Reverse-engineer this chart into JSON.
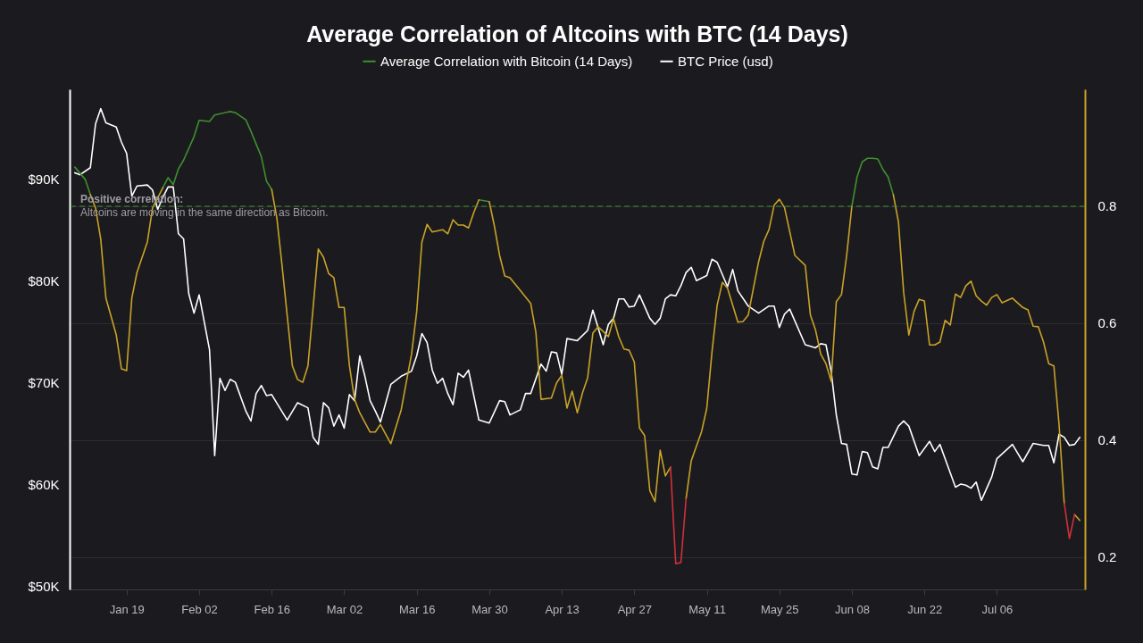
{
  "chart_data": {
    "type": "line",
    "title": "Average Correlation of Altcoins with BTC (14 Days)",
    "legend": "top",
    "grid": "y",
    "line_style": "solid",
    "xlim": [
      "--01-08",
      "--07-23"
    ],
    "xticks": [
      {
        "value": "--01-19",
        "label": "Jan 19"
      },
      {
        "value": "--02-02",
        "label": "Feb 02"
      },
      {
        "value": "--02-16",
        "label": "Feb 16"
      },
      {
        "value": "--03-02",
        "label": "Mar 02"
      },
      {
        "value": "--03-16",
        "label": "Mar 16"
      },
      {
        "value": "--03-30",
        "label": "Mar 30"
      },
      {
        "value": "--04-13",
        "label": "Apr 13"
      },
      {
        "value": "--04-27",
        "label": "Apr 27"
      },
      {
        "value": "--05-11",
        "label": "May 11"
      },
      {
        "value": "--05-25",
        "label": "May 25"
      },
      {
        "value": "--06-08",
        "label": "Jun 08"
      },
      {
        "value": "--06-22",
        "label": "Jun 22"
      },
      {
        "value": "--07-06",
        "label": "Jul 06"
      }
    ],
    "ylim": [
      49650,
      98800
    ],
    "yticks": [
      {
        "value": 50000,
        "label": "$50K"
      },
      {
        "value": 60000,
        "label": "$60K"
      },
      {
        "value": 70000,
        "label": "$70K"
      },
      {
        "value": 80000,
        "label": "$80K"
      },
      {
        "value": 90000,
        "label": "$90K"
      }
    ],
    "y2lim": [
      0.145,
      1.0
    ],
    "y2ticks": [
      0.2,
      0.4,
      0.6,
      0.8
    ],
    "ref_lines": [
      {
        "axis": "y2",
        "value": 0.8,
        "label": "Positive correlation:",
        "color": "#3f8f2f",
        "line_style": "dashed"
      }
    ],
    "annotations": [
      "Altcoins are moving in the same direction as Bitcoin."
    ],
    "series": [
      {
        "name": "Average Correlation with Bitcoin (14 Days)",
        "color": "#3f8f2f",
        "axis": "y2",
        "x": [
          "--01-09",
          "--01-11",
          "--01-12",
          "--01-13",
          "--01-26",
          "--01-27",
          "--01-28",
          "--01-29",
          "--01-30",
          "--02-01",
          "--02-02",
          "--02-04",
          "--02-05",
          "--02-08",
          "--02-09",
          "--02-11",
          "--02-12",
          "--02-14",
          "--02-15",
          "--02-16",
          "--02-17",
          "--03-28",
          "--03-30",
          "--03-31",
          "--06-08",
          "--06-09",
          "--06-10",
          "--06-11",
          "--06-12",
          "--06-13",
          "--06-14",
          "--06-15",
          "--06-16"
        ],
        "values": [
          0.867,
          0.846,
          0.82,
          null,
          0.832,
          0.849,
          0.837,
          0.864,
          0.879,
          0.919,
          0.947,
          0.945,
          0.956,
          0.962,
          0.96,
          0.948,
          0.928,
          0.885,
          0.843,
          0.829,
          null,
          0.811,
          0.808,
          null,
          0.8,
          0.85,
          0.876,
          0.882,
          0.882,
          0.881,
          0.863,
          0.85,
          0.82
        ]
      },
      {
        "color": "#c9a227",
        "axis": "y2",
        "x": [
          "--01-12",
          "--01-13",
          "--01-14",
          "--01-15",
          "--01-17",
          "--01-18",
          "--01-19",
          "--01-20",
          "--01-21",
          "--01-23",
          "--01-24",
          "--01-26",
          "--01-27",
          "--02-16",
          "--02-17",
          "--02-18",
          "--02-20",
          "--02-21",
          "--02-22",
          "--02-23",
          "--02-25",
          "--02-26",
          "--02-27",
          "--02-28",
          "--03-01",
          "--03-02",
          "--03-03",
          "--03-04",
          "--03-05",
          "--03-07",
          "--03-08",
          "--03-09",
          "--03-11",
          "--03-13",
          "--03-15",
          "--03-16",
          "--03-17",
          "--03-18",
          "--03-19",
          "--03-21",
          "--03-22",
          "--03-23",
          "--03-24",
          "--03-25",
          "--03-26",
          "--03-27",
          "--03-28",
          "--03-29",
          "--03-30",
          "--03-31",
          "--04-01",
          "--04-02",
          "--04-03",
          "--04-05",
          "--04-07",
          "--04-08",
          "--04-09",
          "--04-11",
          "--04-12",
          "--04-13",
          "--04-14",
          "--04-15",
          "--04-16",
          "--04-17",
          "--04-18",
          "--04-19",
          "--04-20",
          "--04-21",
          "--04-22",
          "--04-23",
          "--04-24",
          "--04-25",
          "--04-26",
          "--04-27",
          "--04-28",
          "--04-29",
          "--04-30",
          "--05-01",
          "--05-02",
          "--05-03",
          "--05-04",
          "--05-05",
          "--05-07",
          "--05-08",
          "--05-10",
          "--05-11",
          "--05-12",
          "--05-13",
          "--05-14",
          "--05-15",
          "--05-17",
          "--05-18",
          "--05-19",
          "--05-20",
          "--05-21",
          "--05-22",
          "--05-23",
          "--05-24",
          "--05-25",
          "--05-26",
          "--05-27",
          "--05-28",
          "--05-30",
          "--05-31",
          "--06-01",
          "--06-02",
          "--06-03",
          "--06-04",
          "--06-05",
          "--06-06",
          "--06-07",
          "--06-08",
          "--06-09",
          "--06-16",
          "--06-17",
          "--06-18",
          "--06-19",
          "--06-20",
          "--06-21",
          "--06-22",
          "--06-23",
          "--06-24",
          "--06-25",
          "--06-26",
          "--06-27",
          "--06-28",
          "--06-29",
          "--06-30",
          "--07-01",
          "--07-02",
          "--07-03",
          "--07-04",
          "--07-05",
          "--07-06",
          "--07-07",
          "--07-09",
          "--07-11",
          "--07-12",
          "--07-13",
          "--07-14",
          "--07-15",
          "--07-16",
          "--07-17",
          "--07-18",
          "--07-19",
          "--07-20",
          "--07-21",
          "--07-22"
        ],
        "values": [
          0.82,
          0.797,
          0.744,
          0.643,
          0.58,
          0.522,
          0.519,
          0.643,
          0.687,
          0.739,
          0.797,
          0.832,
          null,
          0.829,
          0.78,
          0.699,
          0.527,
          0.504,
          0.499,
          0.527,
          0.727,
          0.713,
          0.685,
          0.678,
          0.627,
          0.627,
          0.528,
          0.47,
          0.447,
          0.414,
          0.414,
          0.427,
          0.394,
          0.452,
          0.547,
          0.62,
          0.739,
          0.769,
          0.756,
          0.76,
          0.753,
          0.777,
          0.768,
          0.768,
          0.763,
          0.789,
          0.811,
          null,
          0.808,
          0.766,
          0.716,
          0.681,
          0.678,
          0.656,
          0.634,
          0.585,
          0.47,
          0.472,
          0.498,
          0.511,
          0.455,
          0.484,
          0.447,
          0.481,
          0.507,
          0.583,
          0.594,
          0.586,
          0.577,
          0.608,
          0.577,
          0.556,
          0.554,
          0.534,
          0.421,
          0.408,
          0.314,
          0.295,
          0.383,
          0.339,
          0.354,
          null,
          0.3,
          0.365,
          0.415,
          0.455,
          0.551,
          0.631,
          0.67,
          0.66,
          0.602,
          0.603,
          0.614,
          0.66,
          0.705,
          0.74,
          0.76,
          0.802,
          0.812,
          0.798,
          0.757,
          0.716,
          0.699,
          0.614,
          0.588,
          0.547,
          0.531,
          0.501,
          0.637,
          0.649,
          0.716,
          0.8,
          null,
          0.82,
          0.773,
          0.653,
          0.58,
          0.62,
          0.641,
          0.638,
          0.563,
          0.563,
          0.568,
          0.605,
          0.597,
          0.65,
          0.644,
          0.664,
          0.672,
          0.647,
          0.638,
          0.631,
          0.644,
          0.649,
          0.635,
          0.643,
          0.627,
          0.623,
          0.595,
          0.594,
          0.568,
          0.531,
          0.527,
          0.427,
          0.292,
          null,
          0.273,
          0.263
        ]
      },
      {
        "color": "#d12f3a",
        "axis": "y2",
        "x": [
          "--05-04",
          "--05-05",
          "--05-06",
          "--05-07",
          "--05-08",
          "--07-19",
          "--07-20",
          "--07-21"
        ],
        "values": [
          0.354,
          0.189,
          0.191,
          0.3,
          null,
          0.292,
          0.232,
          0.273
        ]
      },
      {
        "name": "BTC Price (usd)",
        "color": "#ffffff",
        "axis": "y",
        "x": [
          "--01-09",
          "--01-10",
          "--01-12",
          "--01-13",
          "--01-14",
          "--01-15",
          "--01-17",
          "--01-18",
          "--01-19",
          "--01-20",
          "--01-21",
          "--01-23",
          "--01-24",
          "--01-25",
          "--01-26",
          "--01-27",
          "--01-28",
          "--01-29",
          "--01-30",
          "--01-31",
          "--02-01",
          "--02-02",
          "--02-04",
          "--02-05",
          "--02-06",
          "--02-07",
          "--02-08",
          "--02-09",
          "--02-11",
          "--02-12",
          "--02-13",
          "--02-14",
          "--02-15",
          "--02-16",
          "--02-19",
          "--02-21",
          "--02-23",
          "--02-24",
          "--02-25",
          "--02-26",
          "--02-27",
          "--02-28",
          "--03-01",
          "--03-02",
          "--03-03",
          "--03-04",
          "--03-05",
          "--03-06",
          "--03-07",
          "--03-08",
          "--03-09",
          "--03-11",
          "--03-13",
          "--03-15",
          "--03-16",
          "--03-17",
          "--03-18",
          "--03-19",
          "--03-20",
          "--03-21",
          "--03-22",
          "--03-23",
          "--03-24",
          "--03-25",
          "--03-26",
          "--03-28",
          "--03-30",
          "--04-01",
          "--04-02",
          "--04-03",
          "--04-05",
          "--04-06",
          "--04-07",
          "--04-09",
          "--04-10",
          "--04-11",
          "--04-12",
          "--04-13",
          "--04-14",
          "--04-16",
          "--04-18",
          "--04-19",
          "--04-21",
          "--04-22",
          "--04-23",
          "--04-24",
          "--04-25",
          "--04-26",
          "--04-27",
          "--04-28",
          "--04-30",
          "--05-01",
          "--05-02",
          "--05-03",
          "--05-04",
          "--05-05",
          "--05-06",
          "--05-07",
          "--05-08",
          "--05-09",
          "--05-11",
          "--05-12",
          "--05-13",
          "--05-15",
          "--05-16",
          "--05-17",
          "--05-19",
          "--05-21",
          "--05-23",
          "--05-24",
          "--05-25",
          "--05-26",
          "--05-27",
          "--05-30",
          "--06-01",
          "--06-02",
          "--06-03",
          "--06-04",
          "--06-05",
          "--06-06",
          "--06-07",
          "--06-08",
          "--06-09",
          "--06-10",
          "--06-11",
          "--06-12",
          "--06-13",
          "--06-14",
          "--06-15",
          "--06-17",
          "--06-18",
          "--06-19",
          "--06-21",
          "--06-23",
          "--06-24",
          "--06-25",
          "--06-28",
          "--06-29",
          "--06-30",
          "--07-01",
          "--07-02",
          "--07-03",
          "--07-05",
          "--07-06",
          "--07-09",
          "--07-11",
          "--07-13",
          "--07-15",
          "--07-16",
          "--07-17",
          "--07-18",
          "--07-19",
          "--07-20",
          "--07-21",
          "--07-22"
        ],
        "values": [
          90600,
          90400,
          91100,
          95400,
          96900,
          95500,
          95100,
          93600,
          92500,
          88300,
          89300,
          89400,
          88900,
          87000,
          88200,
          89200,
          89200,
          84600,
          84100,
          78700,
          76800,
          78600,
          73200,
          62800,
          70400,
          69200,
          70300,
          70000,
          67200,
          66200,
          68900,
          69700,
          68700,
          68800,
          66300,
          68000,
          67500,
          64600,
          63900,
          68000,
          67500,
          65700,
          66800,
          65500,
          68800,
          68200,
          72600,
          70600,
          68200,
          67200,
          66100,
          69800,
          70600,
          71100,
          72600,
          74800,
          73900,
          71200,
          69900,
          70400,
          68900,
          67800,
          70900,
          70500,
          71200,
          66300,
          66000,
          68200,
          68100,
          66800,
          67300,
          68900,
          68900,
          71800,
          71100,
          73000,
          72900,
          70800,
          74300,
          74100,
          75100,
          77100,
          73700,
          75700,
          76300,
          78200,
          78200,
          77400,
          77500,
          78600,
          76300,
          75700,
          76300,
          78200,
          78600,
          78500,
          79500,
          80800,
          81300,
          80000,
          80500,
          82100,
          81800,
          79400,
          81100,
          79000,
          77500,
          76800,
          77500,
          77500,
          75400,
          76700,
          77200,
          73700,
          73400,
          73800,
          73700,
          71100,
          66800,
          64000,
          63900,
          61000,
          60900,
          63200,
          63100,
          61700,
          61500,
          63600,
          63600,
          65700,
          66200,
          65700,
          62800,
          64200,
          63200,
          63900,
          59700,
          60000,
          59900,
          59600,
          60200,
          58400,
          60700,
          62500,
          63900,
          62200,
          64000,
          63800,
          63800,
          62100,
          64900,
          64600,
          63800,
          63900,
          64600
        ]
      }
    ]
  }
}
